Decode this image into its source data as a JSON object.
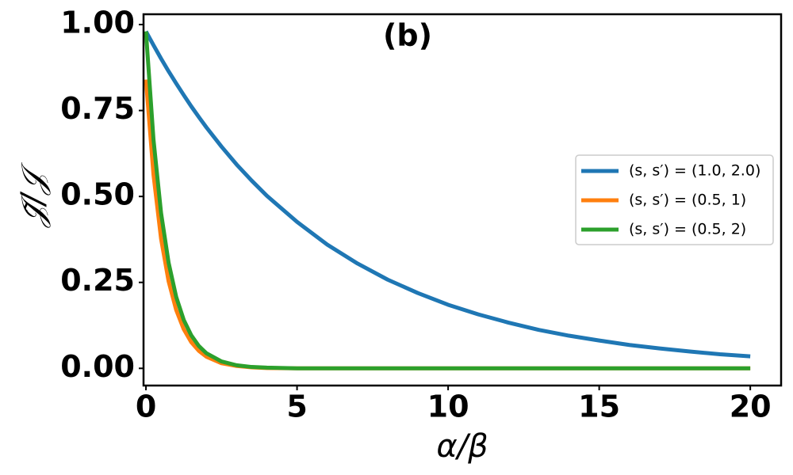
{
  "chart_data": {
    "type": "line",
    "title": "(b)",
    "x_label": "α/β",
    "y_label": "𝒥̃/𝒥",
    "x": [
      0,
      0.25,
      0.5,
      0.75,
      1,
      1.25,
      1.5,
      1.75,
      2,
      2.5,
      3,
      3.5,
      4,
      5,
      6,
      7,
      8,
      9,
      10,
      11,
      12,
      13,
      14,
      15,
      16,
      17,
      18,
      19,
      20
    ],
    "series": [
      {
        "name": "(s, s′) = (1.0, 2.0)",
        "color": "#1f77b4",
        "values": [
          0.98,
          0.94,
          0.901,
          0.864,
          0.829,
          0.795,
          0.762,
          0.731,
          0.701,
          0.645,
          0.593,
          0.546,
          0.502,
          0.426,
          0.36,
          0.305,
          0.258,
          0.219,
          0.185,
          0.157,
          0.133,
          0.112,
          0.095,
          0.081,
          0.068,
          0.058,
          0.049,
          0.041,
          0.035
        ]
      },
      {
        "name": "(s, s′) = (0.5, 1)",
        "color": "#ff7f0e",
        "values": [
          0.84,
          0.563,
          0.377,
          0.253,
          0.17,
          0.114,
          0.076,
          0.051,
          0.034,
          0.015,
          0.007,
          0.003,
          0.001,
          0,
          0,
          0,
          0,
          0,
          0,
          0,
          0,
          0,
          0,
          0,
          0,
          0,
          0,
          0,
          0
        ]
      },
      {
        "name": "(s, s′) = (0.5, 2)",
        "color": "#2ca02c",
        "values": [
          0.98,
          0.665,
          0.452,
          0.307,
          0.208,
          0.141,
          0.096,
          0.065,
          0.044,
          0.02,
          0.009,
          0.004,
          0.002,
          0,
          0,
          0,
          0,
          0,
          0,
          0,
          0,
          0,
          0,
          0,
          0,
          0,
          0,
          0,
          0
        ]
      }
    ],
    "xlim": [
      -0.08,
      21.02
    ],
    "ylim": [
      -0.05,
      1.03
    ],
    "xticks": [
      0,
      5,
      10,
      15,
      20
    ],
    "yticks": [
      {
        "value": 0,
        "label": "0.00"
      },
      {
        "value": 0.25,
        "label": "0.25"
      },
      {
        "value": 0.5,
        "label": "0.50"
      },
      {
        "value": 0.75,
        "label": "0.75"
      },
      {
        "value": 1,
        "label": "1.00"
      }
    ],
    "legend": "center right",
    "grid": false
  }
}
